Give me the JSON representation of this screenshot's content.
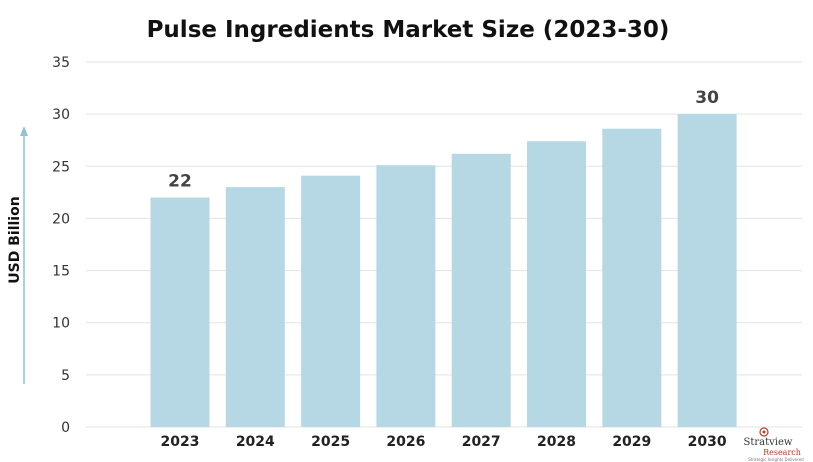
{
  "chart_data": {
    "type": "bar",
    "title": "Pulse Ingredients Market Size (2023-30)",
    "ylabel": "USD Billion",
    "xlabel": "",
    "categories": [
      "2023",
      "2024",
      "2025",
      "2026",
      "2027",
      "2028",
      "2029",
      "2030"
    ],
    "values": [
      22,
      23,
      24.1,
      25.1,
      26.2,
      27.4,
      28.6,
      30
    ],
    "data_labels": [
      {
        "index": 0,
        "text": "22"
      },
      {
        "index": 7,
        "text": "30"
      }
    ],
    "ylim": [
      0,
      35
    ],
    "yticks": [
      "0",
      "5",
      "10",
      "15",
      "20",
      "25",
      "30",
      "35"
    ],
    "grid": true,
    "legend": "none"
  },
  "colors": {
    "bar": "#b6d7e4",
    "grid": "#e3e3e3",
    "arrow": "#8ec3d6"
  },
  "logo": {
    "name": "Stratview",
    "sub": "Research",
    "tagline": "Strategic Insights Delivered"
  }
}
